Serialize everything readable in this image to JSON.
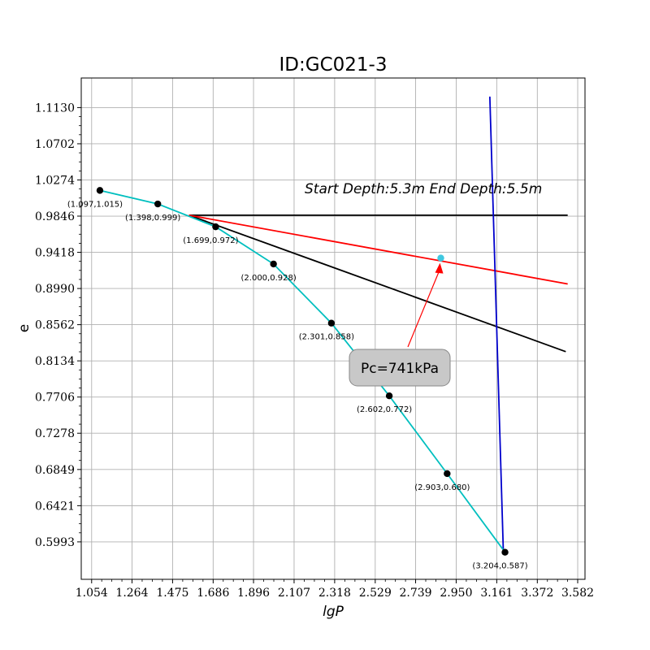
{
  "chart_data": {
    "type": "line",
    "title": "ID:GC021-3",
    "xlabel": "lgP",
    "ylabel": "e",
    "xlim": [
      1.0,
      3.62
    ],
    "ylim": [
      0.555,
      1.148
    ],
    "x_ticks": [
      "1.054",
      "1.264",
      "1.475",
      "1.686",
      "1.896",
      "2.107",
      "2.318",
      "2.529",
      "2.739",
      "2.950",
      "3.161",
      "3.372",
      "3.582"
    ],
    "y_ticks": [
      "0.5993",
      "0.6421",
      "0.6849",
      "0.7278",
      "0.7706",
      "0.8134",
      "0.8562",
      "0.8990",
      "0.9418",
      "0.9846",
      "1.0274",
      "1.0702",
      "1.1130"
    ],
    "grid": true,
    "colors": {
      "curve": "#00bfbf",
      "points": "#000000",
      "horizontal_line": "#000000",
      "tangent_line": "#000000",
      "bisector_line": "#ff0000",
      "compression_line": "#0000cc",
      "pc_point": "#40c8e0",
      "arrow": "#ff0000",
      "pc_box": "#c8c8c8"
    },
    "series": [
      {
        "x": [
          1.097,
          1.398,
          1.699,
          2.0,
          2.301,
          2.602,
          2.903,
          3.204
        ],
        "y": [
          1.015,
          0.999,
          0.972,
          0.928,
          0.858,
          0.772,
          0.68,
          0.587
        ],
        "point_labels": [
          "(1.097,1.015)",
          "(1.398,0.999)",
          "(1.699,0.972)",
          "(2.000,0.928)",
          "(2.301,0.858)",
          "(2.602,0.772)",
          "(2.903,0.680)",
          "(3.204,0.587)"
        ]
      }
    ],
    "construction_lines": [
      {
        "role": "horizontal",
        "x": [
          1.56,
          3.53
        ],
        "y": [
          0.9857,
          0.9857
        ]
      },
      {
        "role": "tangent",
        "x": [
          1.56,
          3.52
        ],
        "y": [
          0.9857,
          0.8243
        ]
      },
      {
        "role": "bisector",
        "x": [
          1.56,
          3.53
        ],
        "y": [
          0.9857,
          0.9044
        ]
      },
      {
        "role": "compression",
        "x": [
          3.125,
          3.195
        ],
        "y": [
          1.126,
          0.59
        ]
      }
    ],
    "pc_point": {
      "x": 2.87,
      "y": 0.935
    },
    "annotations": {
      "depth_text": "Start Depth:5.3m End Depth:5.5m",
      "pc_label": "Pc=741kPa"
    }
  }
}
